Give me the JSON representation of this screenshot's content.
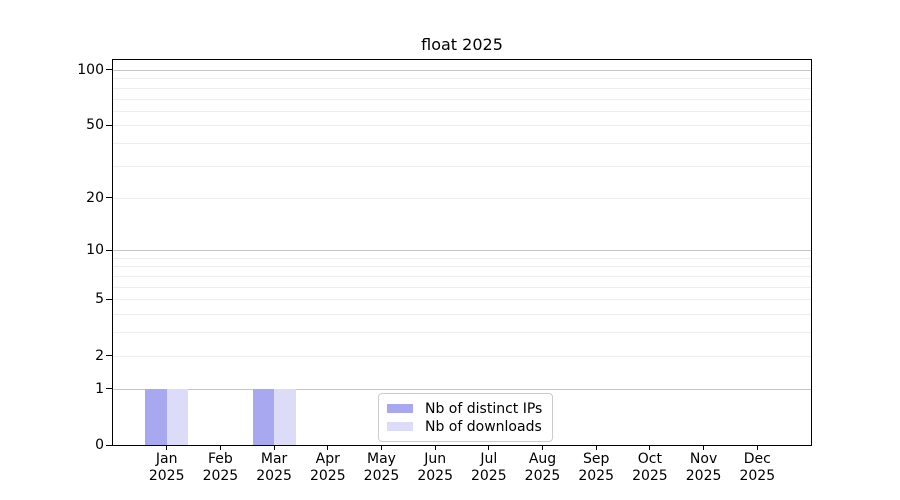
{
  "figure": {
    "background": "#ffffff",
    "axis_color": "#000000"
  },
  "chart_data": {
    "type": "bar",
    "title": "float 2025",
    "categories": [
      "Jan",
      "Feb",
      "Mar",
      "Apr",
      "May",
      "Jun",
      "Jul",
      "Aug",
      "Sep",
      "Oct",
      "Nov",
      "Dec"
    ],
    "category_year": "2025",
    "series": [
      {
        "name": "Nb of distinct IPs",
        "color": "#a8a8f1",
        "values": [
          1,
          0,
          1,
          0,
          0,
          0,
          0,
          0,
          0,
          0,
          0,
          0
        ]
      },
      {
        "name": "Nb of downloads",
        "color": "#dcdcf8",
        "values": [
          1,
          0,
          1,
          0,
          0,
          0,
          0,
          0,
          0,
          0,
          0,
          0
        ]
      }
    ],
    "xlabel": "",
    "ylabel": "",
    "yscale": "log1p",
    "ylim": [
      0,
      113
    ],
    "yticks": [
      0,
      1,
      2,
      5,
      10,
      20,
      50,
      100
    ],
    "major_gridlines": [
      1,
      10,
      100
    ],
    "minor_gridlines": [
      2,
      3,
      4,
      5,
      6,
      7,
      8,
      9,
      20,
      30,
      40,
      50,
      60,
      70,
      80,
      90
    ],
    "grid_color_major": "#c6c6c6",
    "grid_color_minor": "#ededed",
    "legend_position": "lower center",
    "legend": [
      "Nb of distinct IPs",
      "Nb of downloads"
    ]
  }
}
